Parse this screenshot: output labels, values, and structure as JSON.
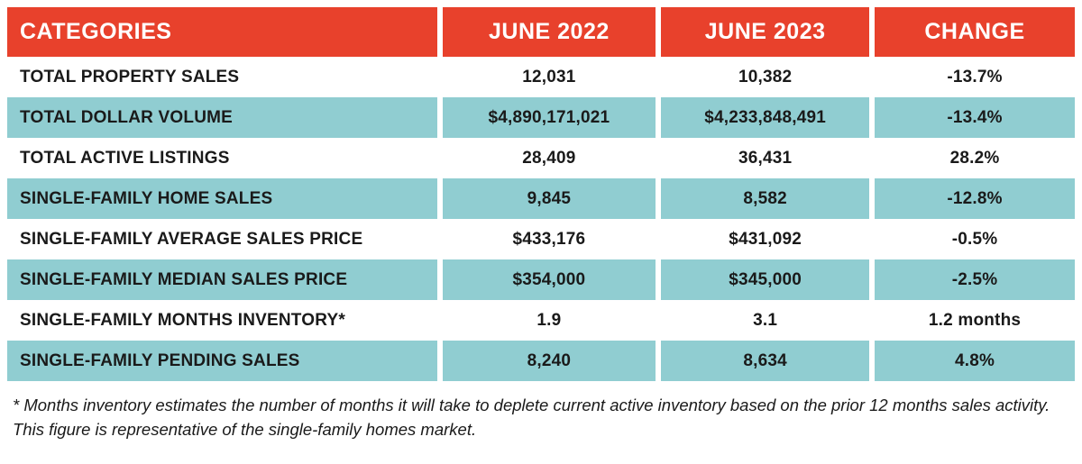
{
  "chart_data": {
    "type": "table",
    "title": "",
    "columns": [
      "CATEGORIES",
      "JUNE 2022",
      "JUNE 2023",
      "CHANGE"
    ],
    "rows": [
      [
        "TOTAL PROPERTY SALES",
        "12,031",
        "10,382",
        "-13.7%"
      ],
      [
        "TOTAL DOLLAR VOLUME",
        "$4,890,171,021",
        "$4,233,848,491",
        "-13.4%"
      ],
      [
        "TOTAL ACTIVE LISTINGS",
        "28,409",
        "36,431",
        "28.2%"
      ],
      [
        "SINGLE-FAMILY HOME SALES",
        "9,845",
        "8,582",
        "-12.8%"
      ],
      [
        "SINGLE-FAMILY AVERAGE SALES PRICE",
        "$433,176",
        "$431,092",
        "-0.5%"
      ],
      [
        "SINGLE-FAMILY MEDIAN SALES PRICE",
        "$354,000",
        "$345,000",
        "-2.5%"
      ],
      [
        "SINGLE-FAMILY MONTHS INVENTORY*",
        "1.9",
        "3.1",
        "1.2 months"
      ],
      [
        "SINGLE-FAMILY PENDING SALES",
        "8,240",
        "8,634",
        "4.8%"
      ]
    ]
  },
  "table": {
    "headers": [
      "CATEGORIES",
      "JUNE 2022",
      "JUNE 2023",
      "CHANGE"
    ],
    "rows": [
      [
        "TOTAL PROPERTY SALES",
        "12,031",
        "10,382",
        "-13.7%"
      ],
      [
        "TOTAL DOLLAR VOLUME",
        "$4,890,171,021",
        "$4,233,848,491",
        "-13.4%"
      ],
      [
        "TOTAL ACTIVE LISTINGS",
        "28,409",
        "36,431",
        "28.2%"
      ],
      [
        "SINGLE-FAMILY HOME SALES",
        "9,845",
        "8,582",
        "-12.8%"
      ],
      [
        "SINGLE-FAMILY AVERAGE SALES PRICE",
        "$433,176",
        "$431,092",
        "-0.5%"
      ],
      [
        "SINGLE-FAMILY MEDIAN SALES PRICE",
        "$354,000",
        "$345,000",
        "-2.5%"
      ],
      [
        "SINGLE-FAMILY MONTHS INVENTORY*",
        "1.9",
        "3.1",
        "1.2 months"
      ],
      [
        "SINGLE-FAMILY PENDING SALES",
        "8,240",
        "8,634",
        "4.8%"
      ]
    ]
  },
  "footnote": "* Months inventory estimates the number of months it will take to deplete current active inventory based on the prior 12 months sales activity. This figure is representative of the single-family homes market.",
  "colors": {
    "header_bg": "#e8412c",
    "header_text": "#ffffff",
    "row_alt_bg": "#90cdd1",
    "row_bg": "#ffffff",
    "body_text": "#1a1a1a"
  }
}
